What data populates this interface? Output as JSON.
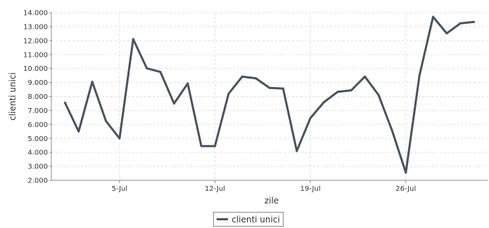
{
  "chart_data": {
    "type": "line",
    "title": "",
    "xlabel": "zile",
    "ylabel": "clienti unici",
    "ylim": [
      2000,
      14000
    ],
    "y_ticks": [
      2000,
      3000,
      4000,
      5000,
      6000,
      7000,
      8000,
      9000,
      10000,
      11000,
      12000,
      13000,
      14000
    ],
    "y_tick_labels": [
      "2.000",
      "3.000",
      "4.000",
      "5.000",
      "6.000",
      "7.000",
      "8.000",
      "9.000",
      "10.000",
      "11.000",
      "12.000",
      "13.000",
      "14.000"
    ],
    "x_tick_labels": [
      "5-Jul",
      "12-Jul",
      "19-Jul",
      "26-Jul"
    ],
    "x_tick_dates": [
      "2024-07-05",
      "2024-07-12",
      "2024-07-19",
      "2024-07-26"
    ],
    "x_range": [
      "2024-06-30",
      "2024-08-01"
    ],
    "x": [
      "2024-07-01",
      "2024-07-02",
      "2024-07-03",
      "2024-07-04",
      "2024-07-05",
      "2024-07-06",
      "2024-07-07",
      "2024-07-08",
      "2024-07-09",
      "2024-07-10",
      "2024-07-11",
      "2024-07-12",
      "2024-07-13",
      "2024-07-14",
      "2024-07-15",
      "2024-07-16",
      "2024-07-17",
      "2024-07-18",
      "2024-07-19",
      "2024-07-20",
      "2024-07-21",
      "2024-07-22",
      "2024-07-23",
      "2024-07-24",
      "2024-07-25",
      "2024-07-26",
      "2024-07-27",
      "2024-07-28",
      "2024-07-29",
      "2024-07-30",
      "2024-07-31"
    ],
    "series": [
      {
        "name": "clienti unici",
        "color": "#46545f",
        "values": [
          7550,
          5500,
          9050,
          6250,
          5000,
          12100,
          10020,
          9750,
          7500,
          8930,
          4450,
          4450,
          8200,
          9420,
          9300,
          8620,
          8560,
          4100,
          6450,
          7600,
          8330,
          8440,
          9420,
          8110,
          5540,
          2550,
          9480,
          13700,
          12520,
          13230,
          13330
        ]
      }
    ],
    "grid": true,
    "legend_position": "bottom-center"
  },
  "legend": {
    "label": "clienti unici",
    "color": "#46545f"
  },
  "colors": {
    "grid": "#dddddd",
    "axis": "#888888",
    "line": "#46545f"
  }
}
